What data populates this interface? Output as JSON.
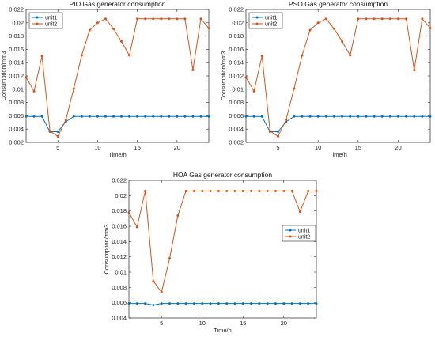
{
  "chart_data": [
    {
      "type": "line",
      "title": "PIO Gas generator consumption",
      "xlabel": "Time/h",
      "ylabel": "Consumption/mm3",
      "xlim": [
        1,
        24
      ],
      "ylim": [
        0.002,
        0.022
      ],
      "xticks": [
        5,
        10,
        15,
        20
      ],
      "yticks": [
        0.002,
        0.004,
        0.006,
        0.008,
        0.01,
        0.012,
        0.014,
        0.016,
        0.018,
        0.02,
        0.022
      ],
      "ytick_labels": [
        "0.002",
        "0.004",
        "0.006",
        "0.008",
        "0.01",
        "0.012",
        "0.014",
        "0.016",
        "0.018",
        "0.02",
        "0.022"
      ],
      "legend": "top-left",
      "grid": false,
      "x": [
        1,
        2,
        3,
        4,
        5,
        6,
        7,
        8,
        9,
        10,
        11,
        12,
        13,
        14,
        15,
        16,
        17,
        18,
        19,
        20,
        21,
        22,
        23,
        24
      ],
      "series": [
        {
          "name": "unit1",
          "color": "#0072BD",
          "values": [
            0.0059,
            0.0059,
            0.0059,
            0.0036,
            0.0036,
            0.0051,
            0.0059,
            0.0059,
            0.0059,
            0.0059,
            0.0059,
            0.0059,
            0.0059,
            0.0059,
            0.0059,
            0.0059,
            0.0059,
            0.0059,
            0.0059,
            0.0059,
            0.0059,
            0.0059,
            0.0059,
            0.0059
          ]
        },
        {
          "name": "unit2",
          "color": "#D95319",
          "values": [
            0.0118,
            0.0097,
            0.015,
            0.0037,
            0.0029,
            0.0054,
            0.0101,
            0.0151,
            0.0189,
            0.02,
            0.0206,
            0.0191,
            0.0172,
            0.0151,
            0.0206,
            0.0206,
            0.0206,
            0.0206,
            0.0206,
            0.0206,
            0.0206,
            0.0129,
            0.0206,
            0.0192
          ]
        }
      ]
    },
    {
      "type": "line",
      "title": "PSO Gas generator consumption",
      "xlabel": "Time/h",
      "ylabel": "Consumption/mm3",
      "xlim": [
        1,
        24
      ],
      "ylim": [
        0.002,
        0.022
      ],
      "xticks": [
        5,
        10,
        15,
        20
      ],
      "yticks": [
        0.002,
        0.004,
        0.006,
        0.008,
        0.01,
        0.012,
        0.014,
        0.016,
        0.018,
        0.02,
        0.022
      ],
      "ytick_labels": [
        "0.002",
        "0.004",
        "0.006",
        "0.008",
        "0.01",
        "0.012",
        "0.014",
        "0.016",
        "0.018",
        "0.02",
        "0.022"
      ],
      "legend": "top-left",
      "grid": false,
      "x": [
        1,
        2,
        3,
        4,
        5,
        6,
        7,
        8,
        9,
        10,
        11,
        12,
        13,
        14,
        15,
        16,
        17,
        18,
        19,
        20,
        21,
        22,
        23,
        24
      ],
      "series": [
        {
          "name": "unit1",
          "color": "#0072BD",
          "values": [
            0.0059,
            0.0059,
            0.0059,
            0.0036,
            0.0036,
            0.0051,
            0.0059,
            0.0059,
            0.0059,
            0.0059,
            0.0059,
            0.0059,
            0.0059,
            0.0059,
            0.0059,
            0.0059,
            0.0059,
            0.0059,
            0.0059,
            0.0059,
            0.0059,
            0.0059,
            0.0059,
            0.0059
          ]
        },
        {
          "name": "unit2",
          "color": "#D95319",
          "values": [
            0.0118,
            0.0097,
            0.015,
            0.0037,
            0.0029,
            0.0054,
            0.0101,
            0.0151,
            0.0189,
            0.02,
            0.0206,
            0.0191,
            0.0172,
            0.0151,
            0.0206,
            0.0206,
            0.0206,
            0.0206,
            0.0206,
            0.0206,
            0.0206,
            0.0129,
            0.0206,
            0.0192
          ]
        }
      ]
    },
    {
      "type": "line",
      "title": "HOA Gas generator consumption",
      "xlabel": "Time/h",
      "ylabel": "Consumption/mm3",
      "xlim": [
        1,
        24
      ],
      "ylim": [
        0.004,
        0.022
      ],
      "xticks": [
        5,
        10,
        15,
        20
      ],
      "yticks": [
        0.004,
        0.006,
        0.008,
        0.01,
        0.012,
        0.014,
        0.016,
        0.018,
        0.02,
        0.022
      ],
      "ytick_labels": [
        "0.004",
        "0.006",
        "0.008",
        "0.01",
        "0.012",
        "0.014",
        "0.016",
        "0.018",
        "0.02",
        "0.022"
      ],
      "legend": "middle-right",
      "grid": false,
      "x": [
        1,
        2,
        3,
        4,
        5,
        6,
        7,
        8,
        9,
        10,
        11,
        12,
        13,
        14,
        15,
        16,
        17,
        18,
        19,
        20,
        21,
        22,
        23,
        24
      ],
      "series": [
        {
          "name": "unit1",
          "color": "#0072BD",
          "values": [
            0.0059,
            0.0059,
            0.0059,
            0.0057,
            0.0059,
            0.0059,
            0.0059,
            0.0059,
            0.0059,
            0.0059,
            0.0059,
            0.0059,
            0.0059,
            0.0059,
            0.0059,
            0.0059,
            0.0059,
            0.0059,
            0.0059,
            0.0059,
            0.0059,
            0.0059,
            0.0059,
            0.0059
          ]
        },
        {
          "name": "unit2",
          "color": "#D95319",
          "values": [
            0.0178,
            0.0159,
            0.0206,
            0.0088,
            0.0074,
            0.0118,
            0.0174,
            0.0206,
            0.0206,
            0.0206,
            0.0206,
            0.0206,
            0.0206,
            0.0206,
            0.0206,
            0.0206,
            0.0206,
            0.0206,
            0.0206,
            0.0206,
            0.0206,
            0.0179,
            0.0206,
            0.0206
          ]
        }
      ]
    }
  ]
}
